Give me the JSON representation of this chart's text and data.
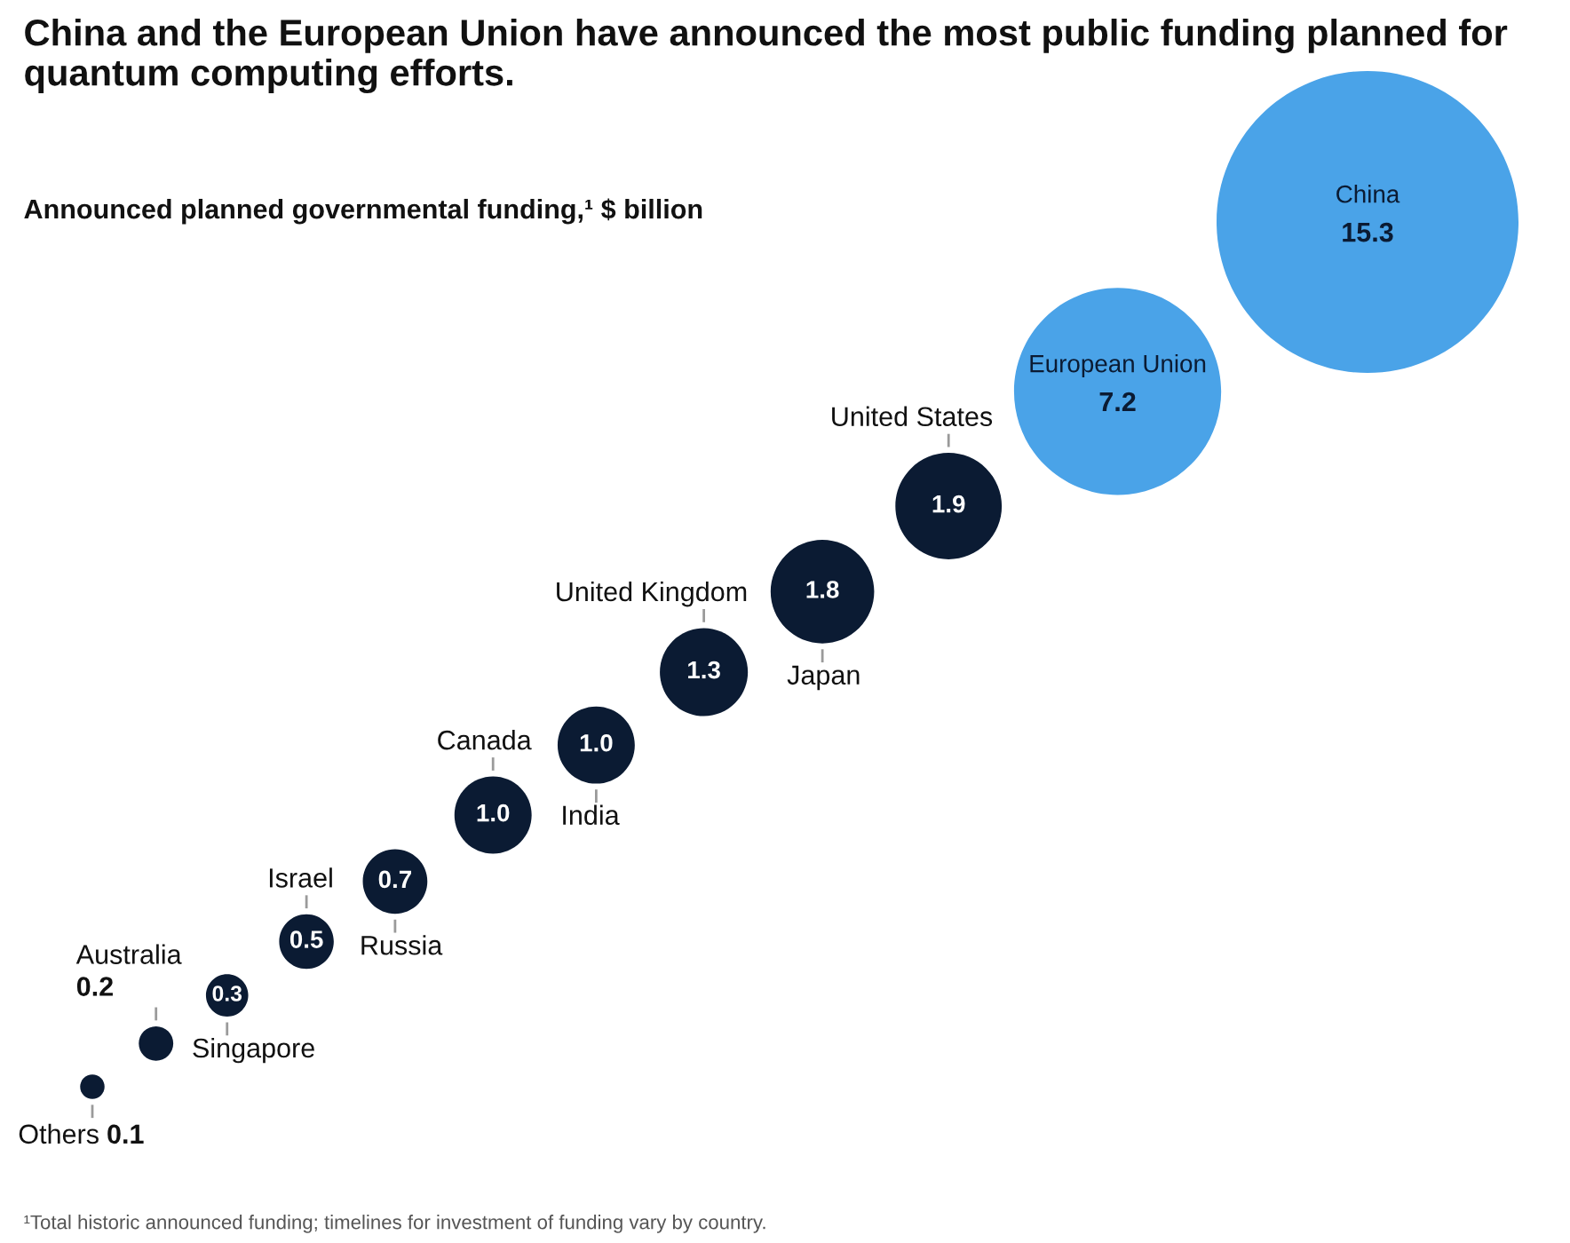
{
  "chart_data": {
    "type": "other",
    "title": "China and the European Union have announced the most public funding planned for quantum computing efforts.",
    "subtitle": "Announced planned governmental funding,¹ $ billion",
    "categories": [
      "Others",
      "Australia",
      "Singapore",
      "Israel",
      "Russia",
      "Canada",
      "India",
      "United Kingdom",
      "Japan",
      "United States",
      "European Union",
      "China"
    ],
    "values": [
      0.1,
      0.2,
      0.3,
      0.5,
      0.7,
      1.0,
      1.0,
      1.3,
      1.8,
      1.9,
      7.2,
      15.3
    ],
    "colors": [
      "#0b1b33",
      "#0b1b33",
      "#0b1b33",
      "#0b1b33",
      "#0b1b33",
      "#0b1b33",
      "#0b1b33",
      "#0b1b33",
      "#0b1b33",
      "#0b1b33",
      "#4aa3e8",
      "#4aa3e8"
    ],
    "value_labels": [
      "0.1",
      "0.2",
      "0.3",
      "0.5",
      "0.7",
      "1.0",
      "1.0",
      "1.3",
      "1.8",
      "1.9",
      "7.2",
      "15.3"
    ],
    "annotations": [
      "¹Total historic announced funding; timelines for investment of funding vary by country."
    ]
  }
}
